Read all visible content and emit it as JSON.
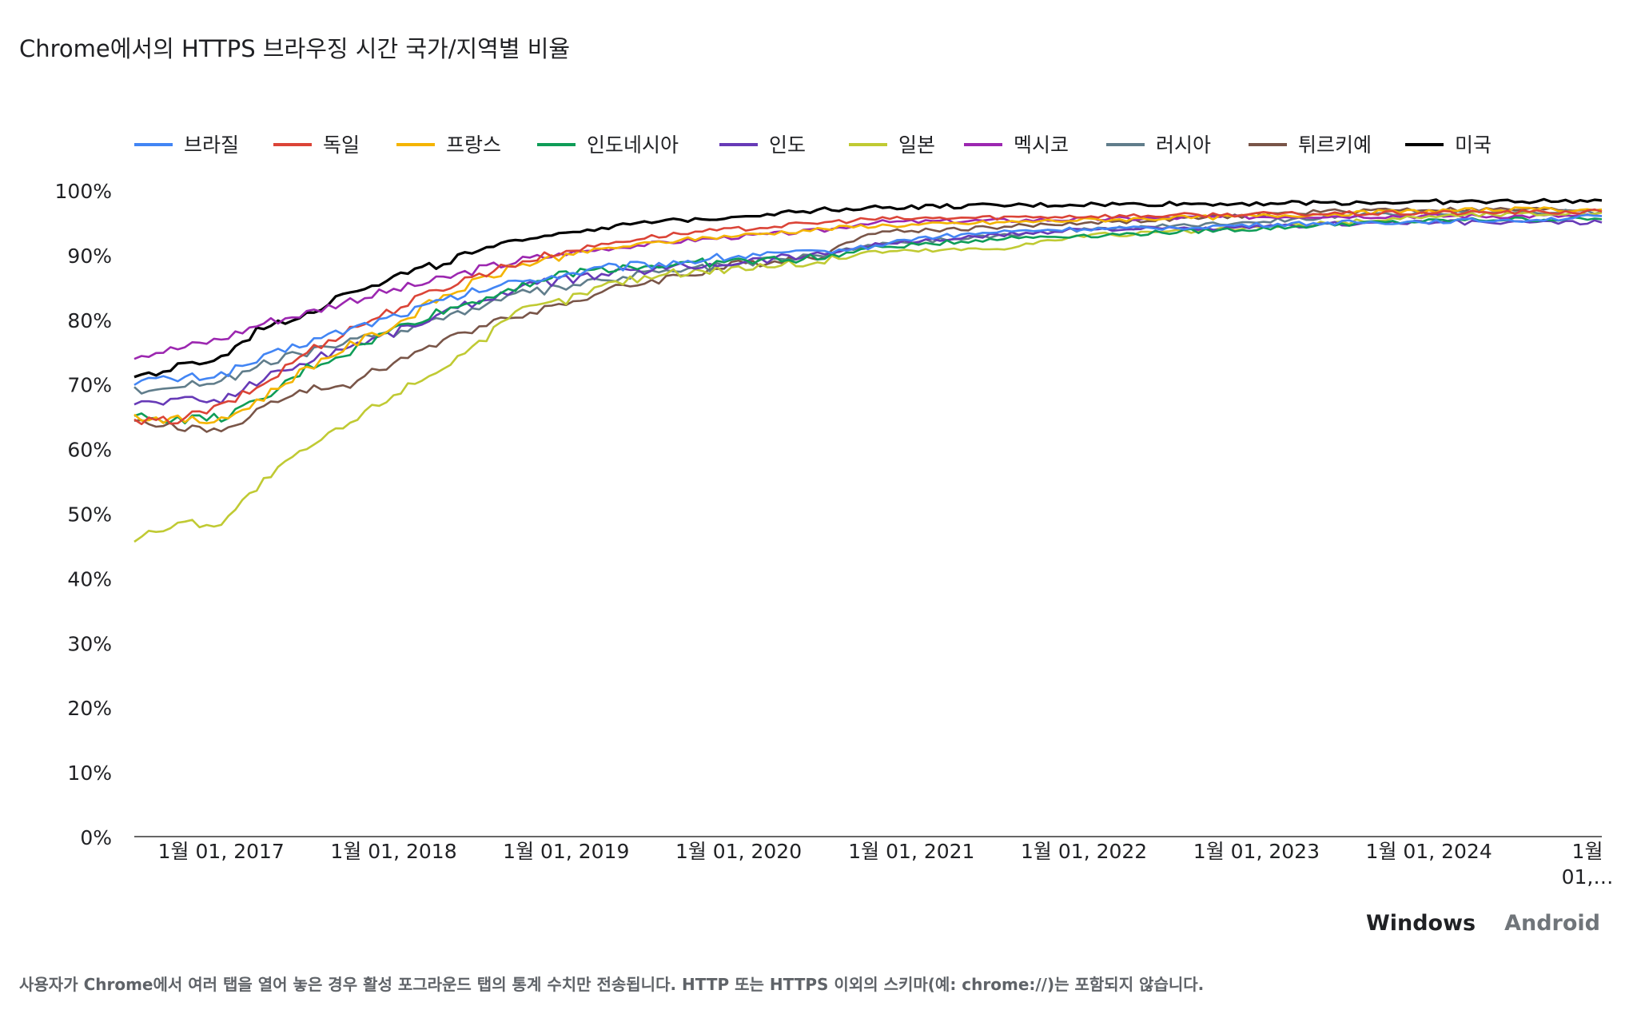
{
  "title": "Chrome에서의 HTTPS 브라우징 시간 국가/지역별 비율",
  "tabs": [
    {
      "label": "Windows",
      "active": true
    },
    {
      "label": "Android",
      "active": false
    }
  ],
  "footnote": "사용자가 Chrome에서 여러 탭을 열어 놓은 경우 활성 포그라운드 탭의 통계 수치만 전송됩니다. HTTP 또는 HTTPS 이외의 스키마(예: chrome://)는 포함되지 않습니다.",
  "chart_data": {
    "type": "line",
    "legend_position": "top",
    "grid": false,
    "x_axis": {
      "range": [
        "2016-07-01",
        "2025-01-01"
      ],
      "tick_labels": [
        {
          "date": "2017-01-01",
          "label": "1월 01, 2017"
        },
        {
          "date": "2018-01-01",
          "label": "1월 01, 2018"
        },
        {
          "date": "2019-01-01",
          "label": "1월 01, 2019"
        },
        {
          "date": "2020-01-01",
          "label": "1월 01, 2020"
        },
        {
          "date": "2021-01-01",
          "label": "1월 01, 2021"
        },
        {
          "date": "2022-01-01",
          "label": "1월 01, 2022"
        },
        {
          "date": "2023-01-01",
          "label": "1월 01, 2023"
        },
        {
          "date": "2024-01-01",
          "label": "1월 01, 2024"
        },
        {
          "date": "2025-01-01",
          "label": "1월 01,…"
        }
      ]
    },
    "y_axis": {
      "range": [
        0,
        100
      ],
      "ticks": [
        0,
        10,
        20,
        30,
        40,
        50,
        60,
        70,
        80,
        90,
        100
      ],
      "tick_labels": [
        "0%",
        "10%",
        "20%",
        "30%",
        "40%",
        "50%",
        "60%",
        "70%",
        "80%",
        "90%",
        "100%"
      ]
    },
    "x": [
      "2016-07",
      "2016-10",
      "2017-01",
      "2017-04",
      "2017-07",
      "2017-10",
      "2018-01",
      "2018-04",
      "2018-07",
      "2018-10",
      "2019-01",
      "2019-04",
      "2019-07",
      "2019-10",
      "2020-01",
      "2020-04",
      "2020-07",
      "2020-10",
      "2021-01",
      "2021-04",
      "2021-07",
      "2021-10",
      "2022-01",
      "2022-04",
      "2022-07",
      "2022-10",
      "2023-01",
      "2023-04",
      "2023-07",
      "2023-10",
      "2024-01",
      "2024-04",
      "2024-07",
      "2024-10",
      "2025-01"
    ],
    "series": [
      {
        "name": "브라질",
        "color": "#4285f4",
        "values": [
          70.5,
          70.8,
          71.5,
          74,
          76.5,
          78.5,
          80.5,
          82.5,
          84.5,
          86,
          87,
          88,
          88.5,
          89.2,
          89.8,
          90.3,
          90.5,
          91.2,
          92.5,
          93,
          93.5,
          93.8,
          94,
          94,
          94.2,
          94.4,
          94.6,
          94.8,
          95,
          95,
          95.2,
          95.3,
          95.4,
          95.6,
          96
        ]
      },
      {
        "name": "독일",
        "color": "#db4437",
        "values": [
          64,
          64.5,
          66.5,
          70,
          75,
          78.5,
          81.5,
          84.5,
          87,
          89,
          90.5,
          91.8,
          92.8,
          93.5,
          94,
          94.5,
          95,
          95.5,
          95.6,
          95.7,
          95.8,
          95.9,
          96,
          96,
          96.1,
          96.2,
          96.3,
          96.3,
          96.4,
          96.4,
          96.5,
          96.5,
          96.6,
          96.6,
          96.7
        ]
      },
      {
        "name": "프랑스",
        "color": "#f4b400",
        "values": [
          65,
          64.5,
          64.2,
          68,
          72.5,
          76,
          79,
          83,
          86,
          88.5,
          90,
          91,
          91.8,
          92.5,
          93,
          93.5,
          94,
          94.5,
          94.6,
          94.8,
          95,
          95.2,
          95.4,
          95.5,
          95.7,
          95.8,
          96,
          96.2,
          96.4,
          96.6,
          96.8,
          96.9,
          97,
          97,
          97
        ]
      },
      {
        "name": "인도네시아",
        "color": "#0f9d58",
        "values": [
          65,
          64.5,
          64.8,
          67.5,
          72.5,
          75,
          78.5,
          81,
          83,
          85.5,
          87,
          88,
          88.3,
          88.7,
          89,
          89.3,
          89.5,
          91,
          91.5,
          92,
          92.5,
          92.8,
          93,
          93.2,
          93.5,
          93.8,
          94,
          94.4,
          94.8,
          95,
          95.2,
          95.4,
          95.5,
          95.5,
          95.5
        ]
      },
      {
        "name": "인도",
        "color": "#673ab7",
        "values": [
          67,
          67.5,
          67.5,
          71,
          73.5,
          76,
          78,
          80.5,
          83,
          85,
          86.2,
          87,
          87.8,
          88.3,
          89,
          89.6,
          90.2,
          91.5,
          92,
          92.5,
          93,
          93.5,
          94,
          94,
          94,
          94,
          94.2,
          94.5,
          94.8,
          95,
          95,
          95,
          95,
          95,
          95
        ]
      },
      {
        "name": "일본",
        "color": "#c0ca33",
        "values": [
          46,
          48.5,
          48.5,
          55,
          60,
          64,
          68.5,
          72,
          76.5,
          81.5,
          83,
          85.5,
          86.8,
          87.5,
          88,
          88.5,
          89,
          90.5,
          90.6,
          90.8,
          91,
          92,
          93,
          93.2,
          93.5,
          93.8,
          94.2,
          94.6,
          95,
          95.5,
          96,
          96.2,
          96.3,
          96.4,
          96.5
        ]
      },
      {
        "name": "멕시코",
        "color": "#9c27b0",
        "values": [
          74.5,
          75.5,
          77,
          79.5,
          81,
          83,
          84.5,
          86,
          87.8,
          89.2,
          90.2,
          91,
          91.7,
          92.3,
          92.8,
          93.3,
          93.8,
          95,
          95.1,
          95.2,
          95.3,
          95.4,
          95.5,
          95.6,
          95.7,
          95.8,
          95.9,
          96,
          96,
          96,
          96,
          96,
          96,
          96,
          96
        ]
      },
      {
        "name": "러시아",
        "color": "#607d8b",
        "values": [
          69,
          69.8,
          70.5,
          73,
          75,
          76.5,
          78,
          80,
          82,
          84,
          85,
          86.2,
          87.2,
          87.8,
          88.5,
          89.3,
          90,
          91.5,
          92,
          92.5,
          93,
          93.5,
          94,
          94.2,
          94.5,
          94.8,
          95.2,
          95.6,
          96,
          96.2,
          96.4,
          96.5,
          96.6,
          96.6,
          96.7
        ]
      },
      {
        "name": "튀르키예",
        "color": "#795548",
        "values": [
          64,
          63.5,
          62.5,
          66.5,
          69,
          70,
          73.5,
          76,
          79,
          81,
          82.5,
          84.5,
          86,
          87.2,
          88.5,
          89.3,
          90,
          93.5,
          93.7,
          94,
          94.3,
          94.6,
          95,
          95.2,
          95.5,
          95.8,
          96.2,
          96.5,
          96.8,
          97,
          97,
          97,
          97,
          97,
          97
        ]
      },
      {
        "name": "미국",
        "color": "#000000",
        "values": [
          71,
          72.5,
          74,
          79,
          81,
          84.5,
          86.5,
          88.5,
          90.5,
          92.5,
          93.5,
          94.3,
          95,
          95.5,
          96,
          96.5,
          97,
          97.3,
          97.4,
          97.5,
          97.6,
          97.7,
          97.8,
          97.8,
          97.9,
          97.9,
          98,
          98,
          98.1,
          98.1,
          98.2,
          98.2,
          98.3,
          98.3,
          98.4
        ]
      }
    ]
  }
}
